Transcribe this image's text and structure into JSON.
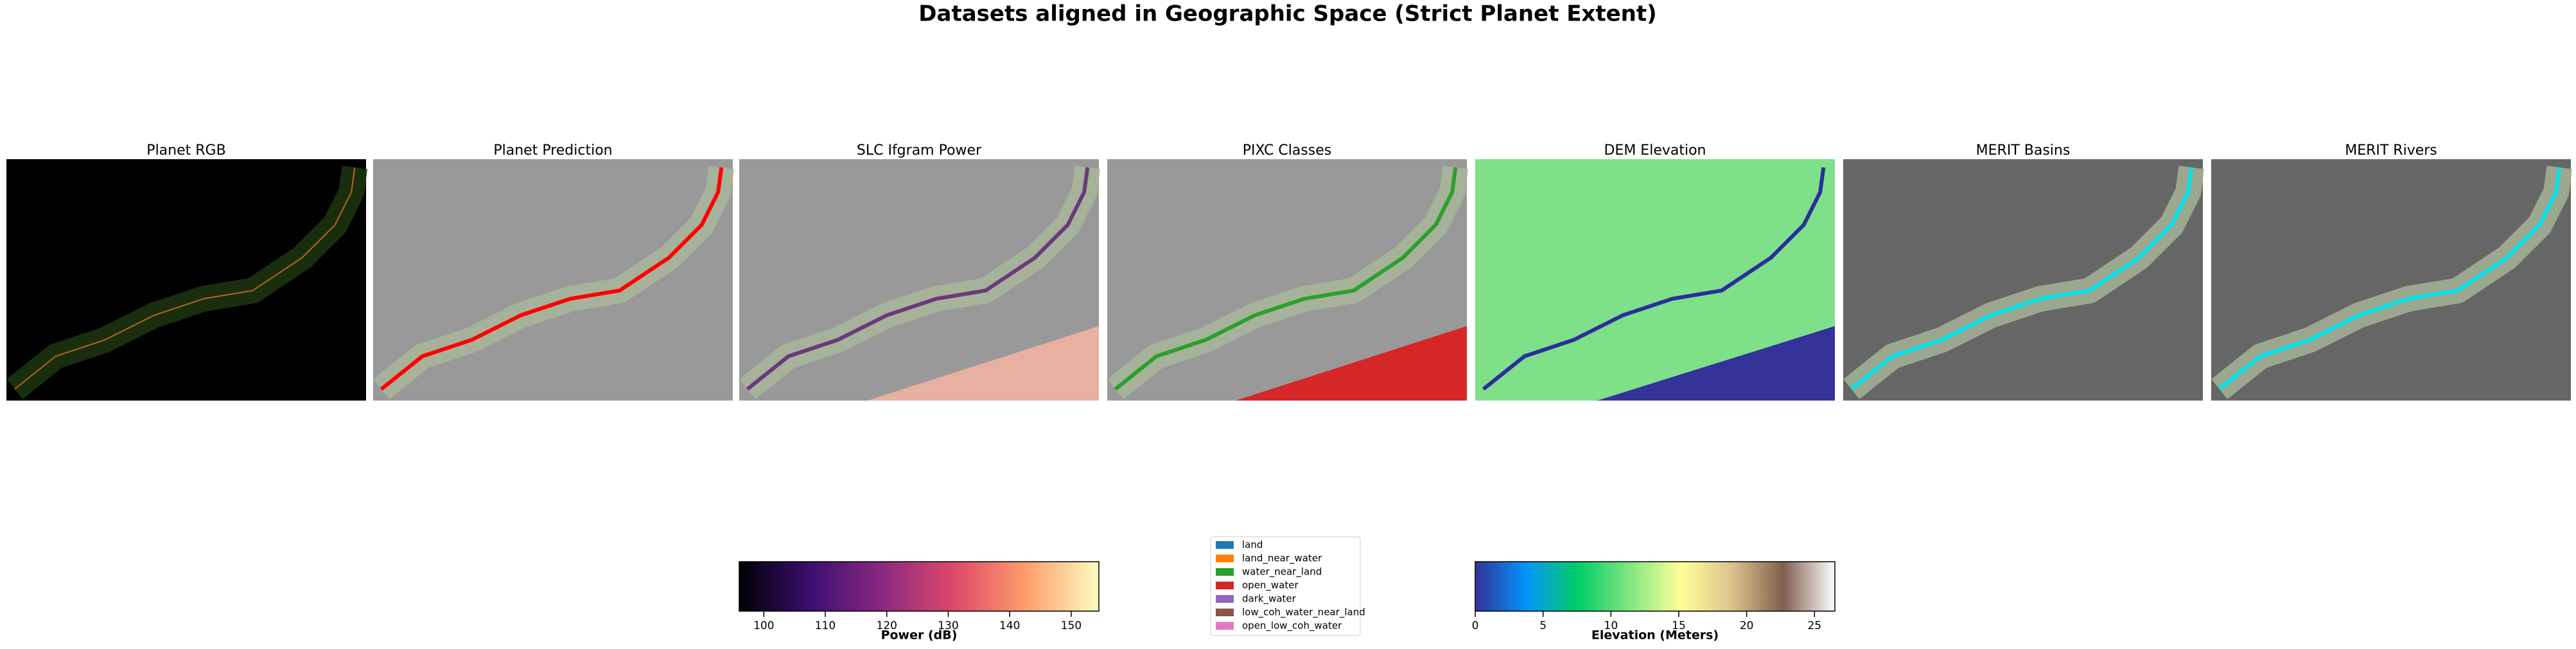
{
  "title": "Datasets aligned in Geographic Space (Strict Planet Extent)",
  "panels": [
    {
      "title": "Planet RGB"
    },
    {
      "title": "Planet Prediction"
    },
    {
      "title": "SLC Ifgram Power"
    },
    {
      "title": "PIXC Classes"
    },
    {
      "title": "DEM Elevation"
    },
    {
      "title": "MERIT Basins"
    },
    {
      "title": "MERIT Rivers"
    }
  ],
  "colorbars": [
    {
      "label": "Power (dB)",
      "lim": [
        96,
        154.5
      ],
      "ticks": [
        100,
        110,
        120,
        130,
        140,
        150
      ],
      "colors": [
        "#000004",
        "#3b0f70",
        "#8c2981",
        "#de4968",
        "#fe9f6d",
        "#fcfdbf"
      ]
    },
    {
      "label": "Elevation (Meters)",
      "lim": [
        0,
        26.5
      ],
      "ticks": [
        0,
        5,
        10,
        15,
        20,
        25
      ],
      "colors": [
        "#333399",
        "#0294fa",
        "#01cc66",
        "#80e680",
        "#ffff99",
        "#dcc28c",
        "#806050",
        "#ffffff"
      ]
    }
  ],
  "legend": {
    "items": [
      {
        "name": "land",
        "color": "#1f77b4"
      },
      {
        "name": "land_near_water",
        "color": "#ff7f0e"
      },
      {
        "name": "water_near_land",
        "color": "#2ca02c"
      },
      {
        "name": "open_water",
        "color": "#d62728"
      },
      {
        "name": "dark_water",
        "color": "#9467bd"
      },
      {
        "name": "low_coh_water_near_land",
        "color": "#8c564b"
      },
      {
        "name": "open_low_coh_water",
        "color": "#e377c2"
      }
    ]
  }
}
